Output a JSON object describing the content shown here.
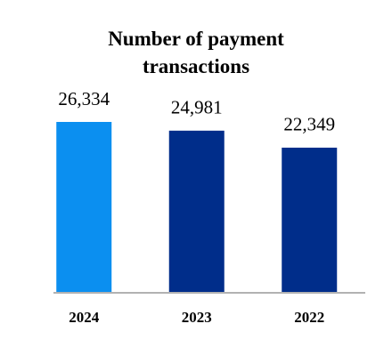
{
  "chart_data": {
    "type": "bar",
    "title": "Number of payment transactions",
    "categories": [
      "2024",
      "2023",
      "2022"
    ],
    "values": [
      26334,
      24981,
      22349
    ],
    "value_labels": [
      "26,334",
      "24,981",
      "22,349"
    ],
    "colors": [
      "#0b8ff0",
      "#002d8a",
      "#002d8a"
    ]
  }
}
